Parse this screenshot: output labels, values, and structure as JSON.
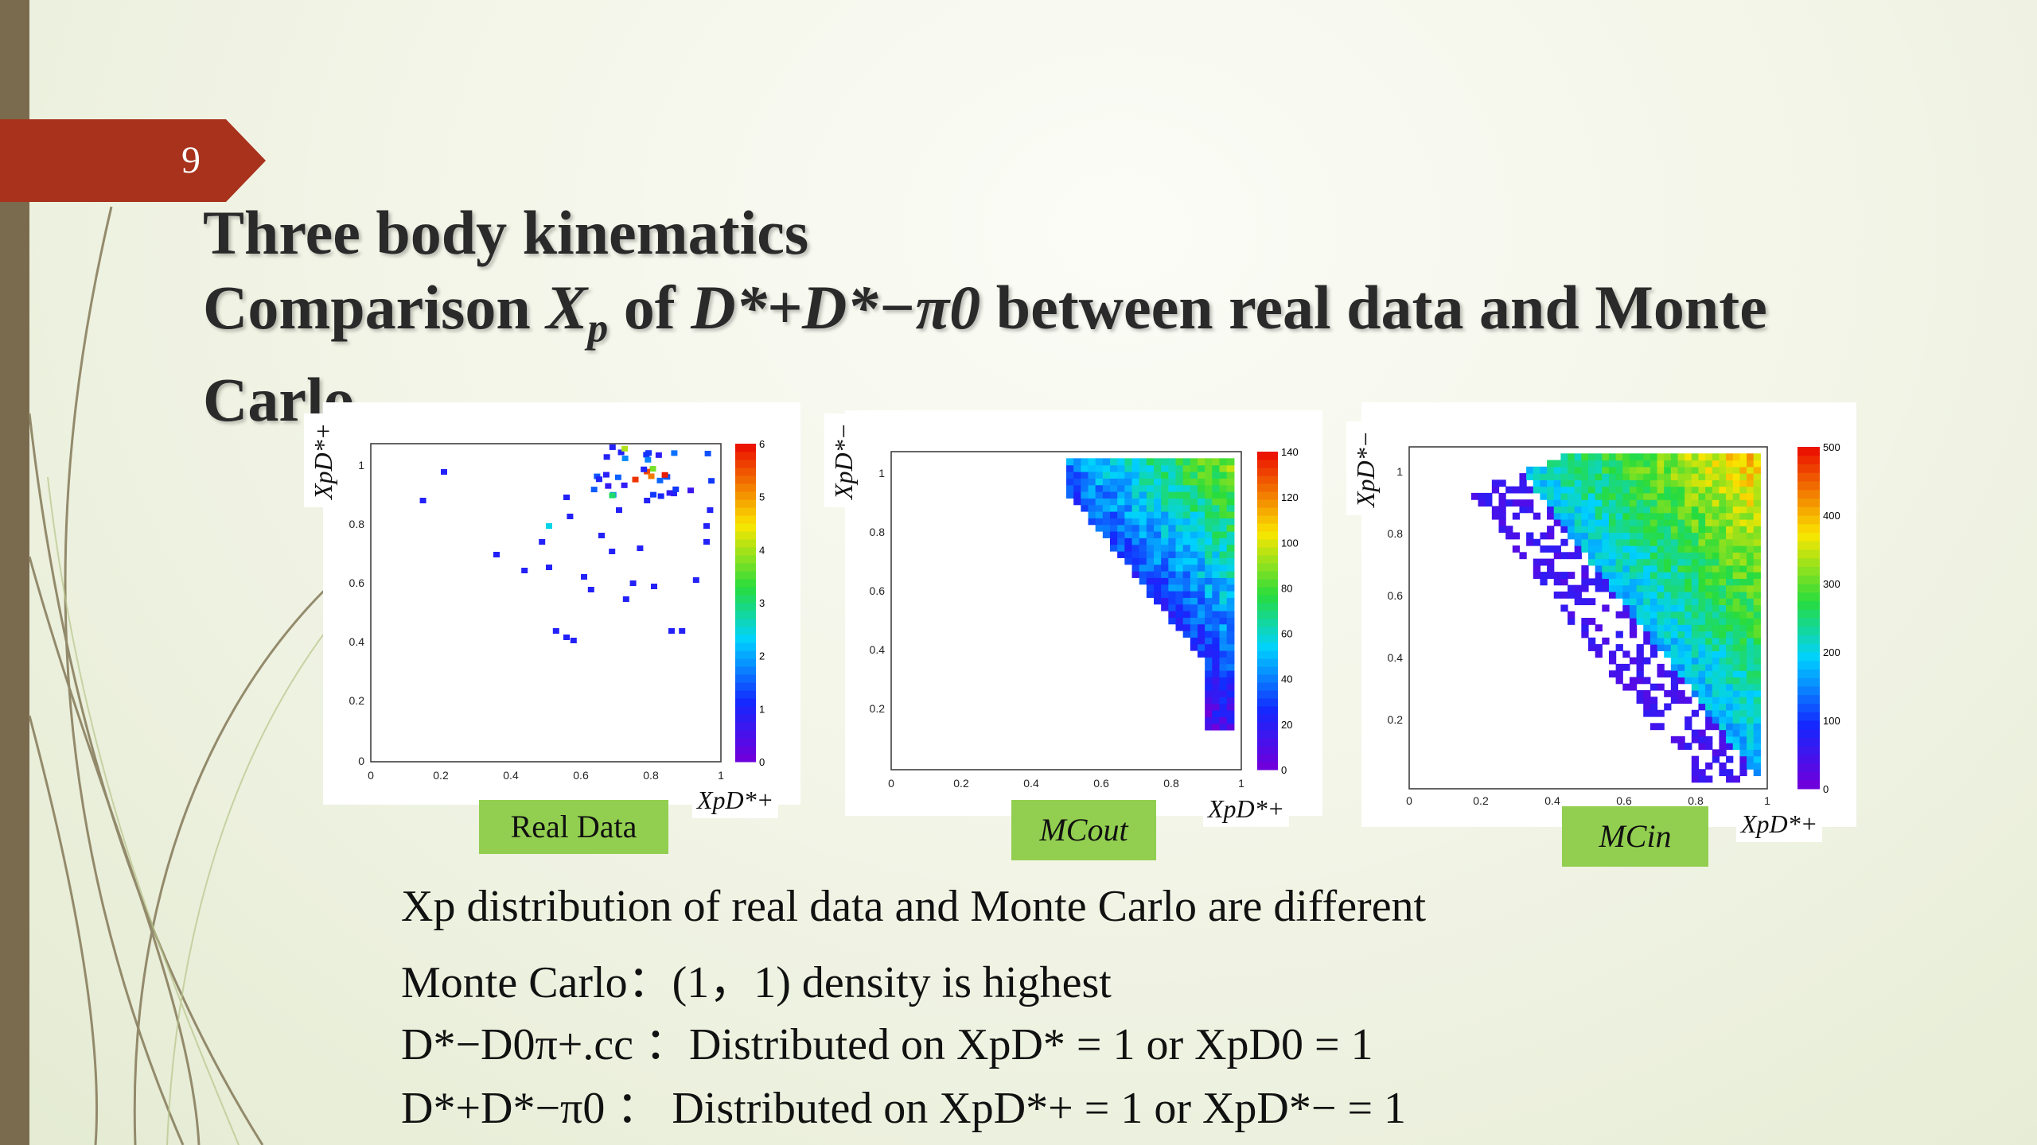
{
  "slide": {
    "number": "9",
    "title_line1": "Three body kinematics",
    "title_line2_a": "Comparison ",
    "title_line2_math": "X",
    "title_line2_sub": "p",
    "title_line2_b": " of ",
    "title_line2_math2": "D*+D*−π0",
    "title_line2_c": " between real data and Monte",
    "title_line3": "Carlo"
  },
  "plots": [
    {
      "label": "Real Data",
      "y_axis": "XpD*+",
      "x_axis": "XpD*+",
      "colorbar_ticks": [
        "0",
        "1",
        "2",
        "3",
        "4",
        "5",
        "6"
      ]
    },
    {
      "label": "MCout",
      "y_axis": "XpD*−",
      "x_axis": "XpD*+",
      "colorbar_ticks": [
        "0",
        "20",
        "40",
        "60",
        "80",
        "100",
        "120",
        "140"
      ]
    },
    {
      "label": "MCin",
      "y_axis": "XpD*−",
      "x_axis": "XpD*+",
      "colorbar_ticks": [
        "0",
        "100",
        "200",
        "300",
        "400",
        "500"
      ]
    }
  ],
  "axis_ticks": [
    "0",
    "0.2",
    "0.4",
    "0.6",
    "0.8",
    "1"
  ],
  "bullets": [
    "Xp distribution of real data and Monte Carlo are different",
    "Monte Carlo：(1，1) density is highest",
    "D*−D0π+.cc ：Distributed on XpD* = 1 or XpD0 = 1",
    "D*+D*−π0 ： Distributed on XpD*+ = 1 or XpD*− = 1"
  ],
  "colors": {
    "accent_tag": "#a8321c",
    "label_green": "#92cf50",
    "sidebar": "#7a6b4f"
  },
  "icons": [
    "slide-number-arrow-icon"
  ]
}
